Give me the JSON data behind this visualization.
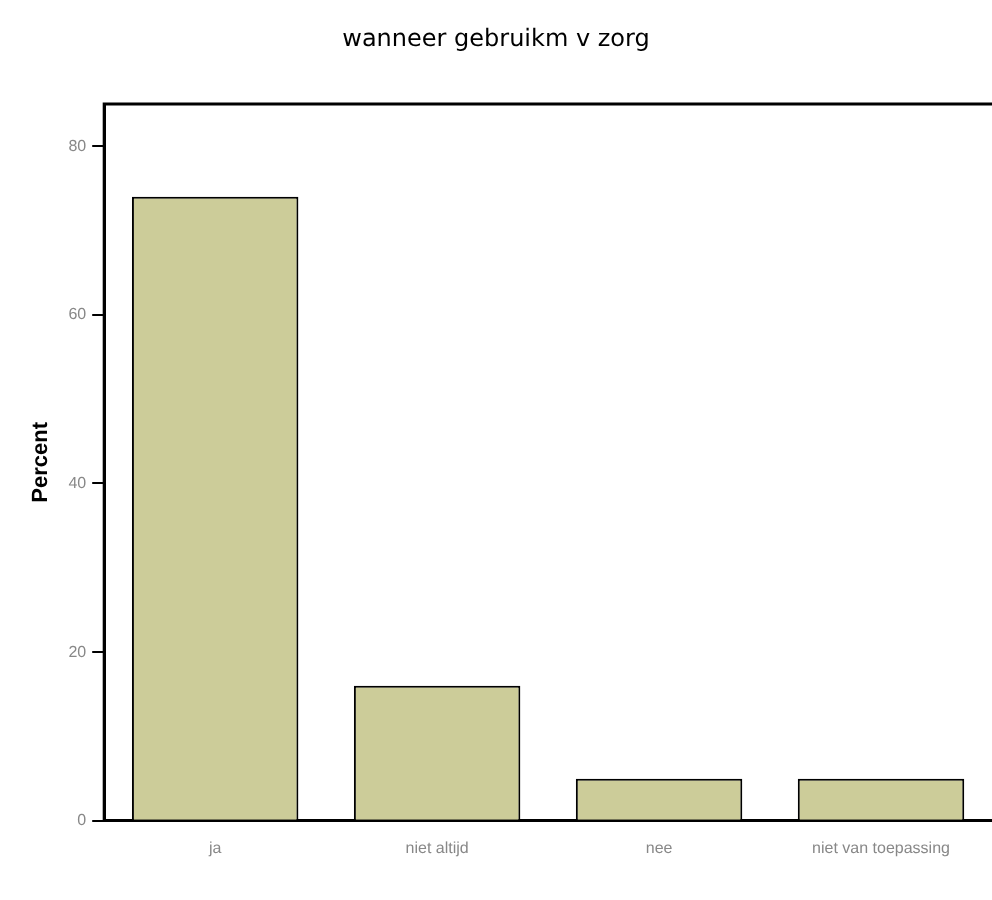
{
  "chart_data": {
    "type": "bar",
    "title": "wanneer gebruikm v zorg",
    "ylabel": "Percent",
    "categories": [
      "ja",
      "niet altijd",
      "nee",
      "niet van toepassing"
    ],
    "values": [
      74,
      16,
      5,
      5
    ],
    "color": "#cccc99",
    "ylim": [
      0,
      85
    ],
    "yticks": [
      0,
      20,
      40,
      60,
      80
    ],
    "grid": false,
    "legend": false
  }
}
